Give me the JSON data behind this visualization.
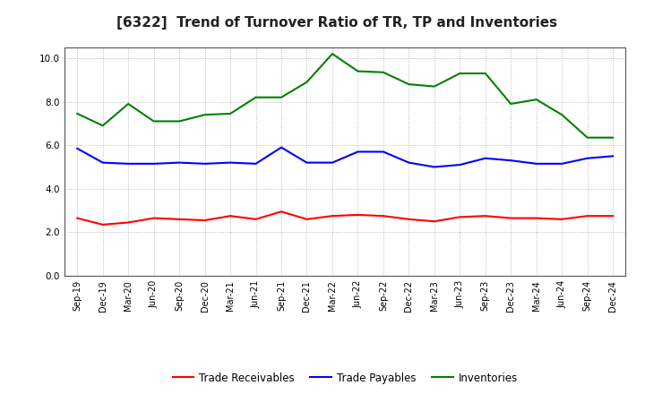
{
  "title": "[6322]  Trend of Turnover Ratio of TR, TP and Inventories",
  "x_labels": [
    "Sep-19",
    "Dec-19",
    "Mar-20",
    "Jun-20",
    "Sep-20",
    "Dec-20",
    "Mar-21",
    "Jun-21",
    "Sep-21",
    "Dec-21",
    "Mar-22",
    "Jun-22",
    "Sep-22",
    "Dec-22",
    "Mar-23",
    "Jun-23",
    "Sep-23",
    "Dec-23",
    "Mar-24",
    "Jun-24",
    "Sep-24",
    "Dec-24"
  ],
  "trade_receivables": [
    2.65,
    2.35,
    2.45,
    2.65,
    2.6,
    2.55,
    2.75,
    2.6,
    2.95,
    2.6,
    2.75,
    2.8,
    2.75,
    2.6,
    2.5,
    2.7,
    2.75,
    2.65,
    2.65,
    2.6,
    2.75,
    2.75
  ],
  "trade_payables": [
    5.85,
    5.2,
    5.15,
    5.15,
    5.2,
    5.15,
    5.2,
    5.15,
    5.9,
    5.2,
    5.2,
    5.7,
    5.7,
    5.2,
    5.0,
    5.1,
    5.4,
    5.3,
    5.15,
    5.15,
    5.4,
    5.5
  ],
  "inventories": [
    7.45,
    6.9,
    7.9,
    7.1,
    7.1,
    7.4,
    7.45,
    8.2,
    8.2,
    8.9,
    10.2,
    9.4,
    9.35,
    8.8,
    8.7,
    9.3,
    9.3,
    7.9,
    8.1,
    7.4,
    6.35,
    6.35
  ],
  "ylim": [
    0.0,
    10.5
  ],
  "yticks": [
    0.0,
    2.0,
    4.0,
    6.0,
    8.0,
    10.0
  ],
  "color_tr": "#ff0000",
  "color_tp": "#0000ff",
  "color_inv": "#008000",
  "legend_tr": "Trade Receivables",
  "legend_tp": "Trade Payables",
  "legend_inv": "Inventories",
  "background_color": "#ffffff",
  "grid_color": "#aaaaaa",
  "title_fontsize": 11,
  "tick_fontsize": 7,
  "legend_fontsize": 8.5,
  "linewidth": 1.5
}
